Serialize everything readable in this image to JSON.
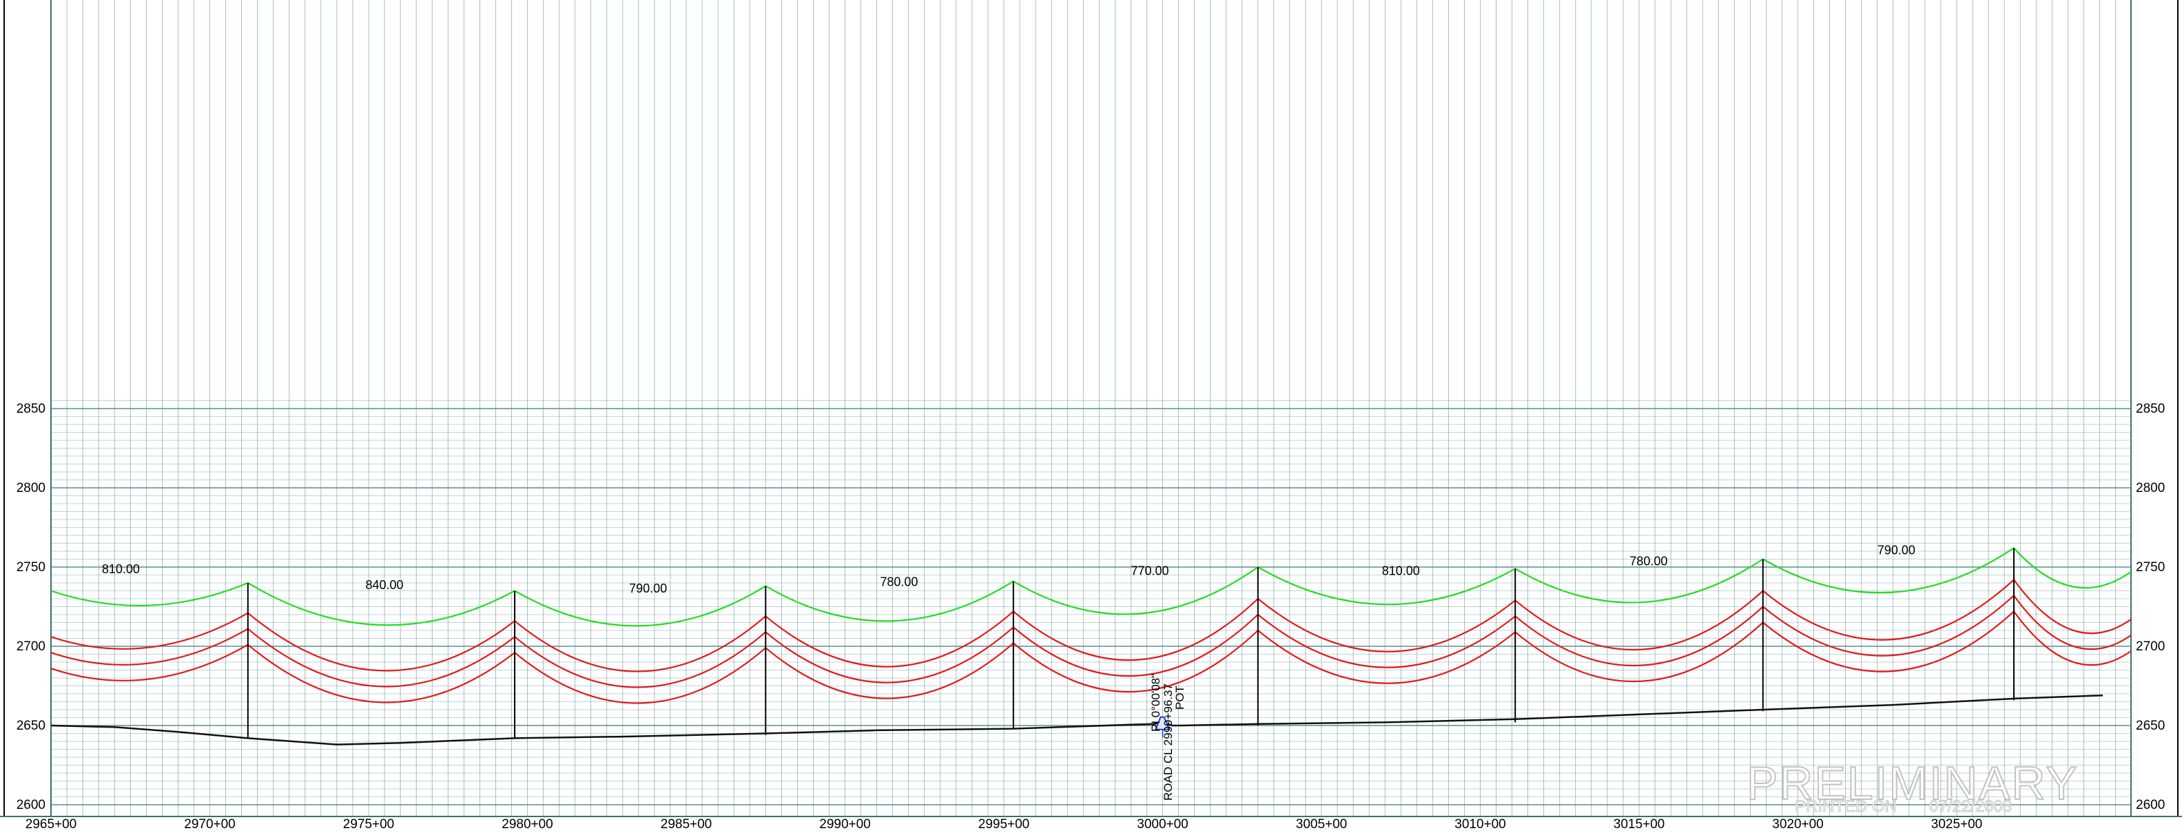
{
  "sheet": {
    "stamp": "PRELIMINARY",
    "printed_label": "PRINTED ON",
    "printed_date": "07/22/2008",
    "x_range": [
      2965,
      2998
    ],
    "y_range": [
      2600,
      2850
    ],
    "colors": {
      "grid": "#4d8a8a",
      "ground": "#111111",
      "top_wire": "#22dd22",
      "lower_wires": "#e21b1b",
      "structure": "#000000",
      "road": "#1a3fbf",
      "stamp": "#c8c8c8"
    }
  },
  "axes": {
    "left_elevations": [
      "2850",
      "2800",
      "2750",
      "2700",
      "2650",
      "2600"
    ],
    "right_elevations": [
      "2850",
      "2800",
      "2750",
      "2700",
      "2650",
      "2600"
    ],
    "stations": [
      "2965+00",
      "2970+00",
      "2975+00",
      "2980+00",
      "2985+00",
      "2990+00",
      "2995+00",
      "3000+00",
      "3005+00",
      "3010+00",
      "3015+00",
      "3020+00",
      "3025+00"
    ]
  },
  "chart_data": {
    "type": "line",
    "xlabel": "",
    "ylabel": "",
    "elevation_ticks": [
      2600,
      2650,
      2700,
      2750,
      2800,
      2850
    ],
    "station_ticks": [
      2965,
      2970,
      2975,
      2980,
      2985,
      2990,
      2995,
      3000,
      3005,
      3010,
      3015,
      3020,
      3025
    ],
    "span_lengths": [
      "810.00",
      "840.00",
      "790.00",
      "780.00",
      "770.00",
      "810.00",
      "780.00",
      "790.00"
    ],
    "structures": [
      {
        "station": 2971.2,
        "ground": 2642,
        "top": 2740,
        "arms": [
          2721,
          2711,
          2701
        ]
      },
      {
        "station": 2979.6,
        "ground": 2642,
        "top": 2735,
        "arms": [
          2716,
          2706,
          2696
        ]
      },
      {
        "station": 2987.5,
        "ground": 2644,
        "top": 2738,
        "arms": [
          2719,
          2709,
          2699
        ]
      },
      {
        "station": 2995.3,
        "ground": 2648,
        "top": 2741,
        "arms": [
          2722,
          2712,
          2702
        ]
      },
      {
        "station": 3003.0,
        "ground": 2650,
        "top": 2750,
        "arms": [
          2730,
          2720,
          2710
        ]
      },
      {
        "station": 3011.1,
        "ground": 2652,
        "top": 2749,
        "arms": [
          2729,
          2719,
          2709
        ]
      },
      {
        "station": 3018.9,
        "ground": 2659,
        "top": 2755,
        "arms": [
          2735,
          2725,
          2715
        ]
      },
      {
        "station": 3026.8,
        "ground": 2666,
        "top": 2762,
        "arms": [
          2742,
          2732,
          2722
        ]
      }
    ],
    "ground_profile": [
      {
        "x": 2965.0,
        "y": 2650
      },
      {
        "x": 2967.0,
        "y": 2649
      },
      {
        "x": 2969.0,
        "y": 2646
      },
      {
        "x": 2971.2,
        "y": 2642
      },
      {
        "x": 2974.0,
        "y": 2638
      },
      {
        "x": 2976.0,
        "y": 2639
      },
      {
        "x": 2979.6,
        "y": 2642
      },
      {
        "x": 2983.0,
        "y": 2643
      },
      {
        "x": 2987.5,
        "y": 2645
      },
      {
        "x": 2991.0,
        "y": 2647
      },
      {
        "x": 2995.3,
        "y": 2648
      },
      {
        "x": 2999.7,
        "y": 2651
      },
      {
        "x": 3000.0,
        "y": 2652
      },
      {
        "x": 3000.3,
        "y": 2650
      },
      {
        "x": 3000.6,
        "y": 2650
      },
      {
        "x": 3003.0,
        "y": 2651
      },
      {
        "x": 3007.0,
        "y": 2652
      },
      {
        "x": 3011.1,
        "y": 2654
      },
      {
        "x": 3015.0,
        "y": 2657
      },
      {
        "x": 3018.9,
        "y": 2660
      },
      {
        "x": 3023.0,
        "y": 2663
      },
      {
        "x": 3026.8,
        "y": 2667
      },
      {
        "x": 3029.6,
        "y": 2669
      }
    ]
  },
  "road": {
    "pi_label": "PI 0°00'08\"",
    "road_label": "ROAD CL 2999+96.37",
    "pot_label": "POT"
  }
}
